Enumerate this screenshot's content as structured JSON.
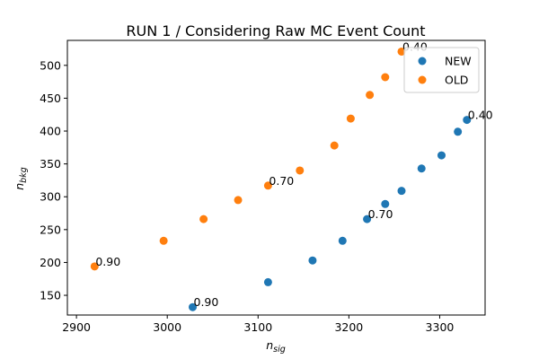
{
  "chart_data": {
    "type": "scatter",
    "title": "RUN 1 / Considering Raw MC Event Count",
    "xlabel": {
      "base": "n",
      "sub": "sig"
    },
    "ylabel": {
      "base": "n",
      "sub": "bkg"
    },
    "xlim": [
      2890,
      3350
    ],
    "ylim": [
      120,
      538
    ],
    "xticks": [
      2900,
      3000,
      3100,
      3200,
      3300
    ],
    "yticks": [
      150,
      200,
      250,
      300,
      350,
      400,
      450,
      500
    ],
    "grid": false,
    "legend_position": "top-right",
    "series": [
      {
        "name": "NEW",
        "color": "#1f77b4",
        "points": [
          {
            "x": 3028,
            "y": 132
          },
          {
            "x": 3111,
            "y": 170
          },
          {
            "x": 3160,
            "y": 203
          },
          {
            "x": 3193,
            "y": 233
          },
          {
            "x": 3220,
            "y": 266
          },
          {
            "x": 3240,
            "y": 289
          },
          {
            "x": 3258,
            "y": 309
          },
          {
            "x": 3280,
            "y": 343
          },
          {
            "x": 3302,
            "y": 363
          },
          {
            "x": 3320,
            "y": 399
          },
          {
            "x": 3330,
            "y": 417
          }
        ]
      },
      {
        "name": "OLD",
        "color": "#ff7f0e",
        "points": [
          {
            "x": 2920,
            "y": 194
          },
          {
            "x": 2996,
            "y": 233
          },
          {
            "x": 3040,
            "y": 266
          },
          {
            "x": 3078,
            "y": 295
          },
          {
            "x": 3111,
            "y": 317
          },
          {
            "x": 3146,
            "y": 340
          },
          {
            "x": 3184,
            "y": 378
          },
          {
            "x": 3202,
            "y": 419
          },
          {
            "x": 3223,
            "y": 455
          },
          {
            "x": 3240,
            "y": 482
          },
          {
            "x": 3258,
            "y": 521
          }
        ]
      }
    ],
    "annotations": [
      {
        "text": "0.90",
        "x": 3028,
        "y": 132
      },
      {
        "text": "0.70",
        "x": 3220,
        "y": 266
      },
      {
        "text": "0.40",
        "x": 3330,
        "y": 417
      },
      {
        "text": "0.90",
        "x": 2920,
        "y": 194
      },
      {
        "text": "0.70",
        "x": 3111,
        "y": 317
      },
      {
        "text": "0.40",
        "x": 3258,
        "y": 521
      }
    ]
  }
}
